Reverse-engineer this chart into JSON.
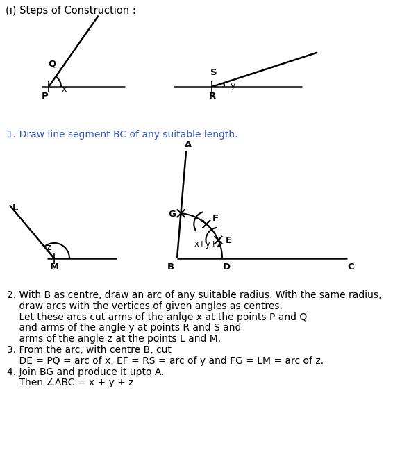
{
  "bg_color": "#ffffff",
  "title": "(i) Steps of Construction :",
  "step1": "1. Draw line segment BC of any suitable length.",
  "step2a": "2. With B as centre, draw an arc of any suitable radius. With the same radius,",
  "step2b": "    draw arcs with the vertices of given angles as centres.",
  "step2c": "    Let these arcs cut arms of the anlge x at the points P and Q",
  "step2d": "    and arms of the angle y at points R and S and",
  "step2e": "    arms of the angle z at the points L and M.",
  "step3a": "3. From the arc, with centre B, cut",
  "step3b": "    DE = PQ = arc of x, EF = RS = arc of y and FG = LM = arc of z.",
  "step4a": "4. Join BG and produce it upto A.",
  "step4b": "    Then ∠ABC = x + y + z",
  "blue": "#3355bb",
  "black": "#000000"
}
